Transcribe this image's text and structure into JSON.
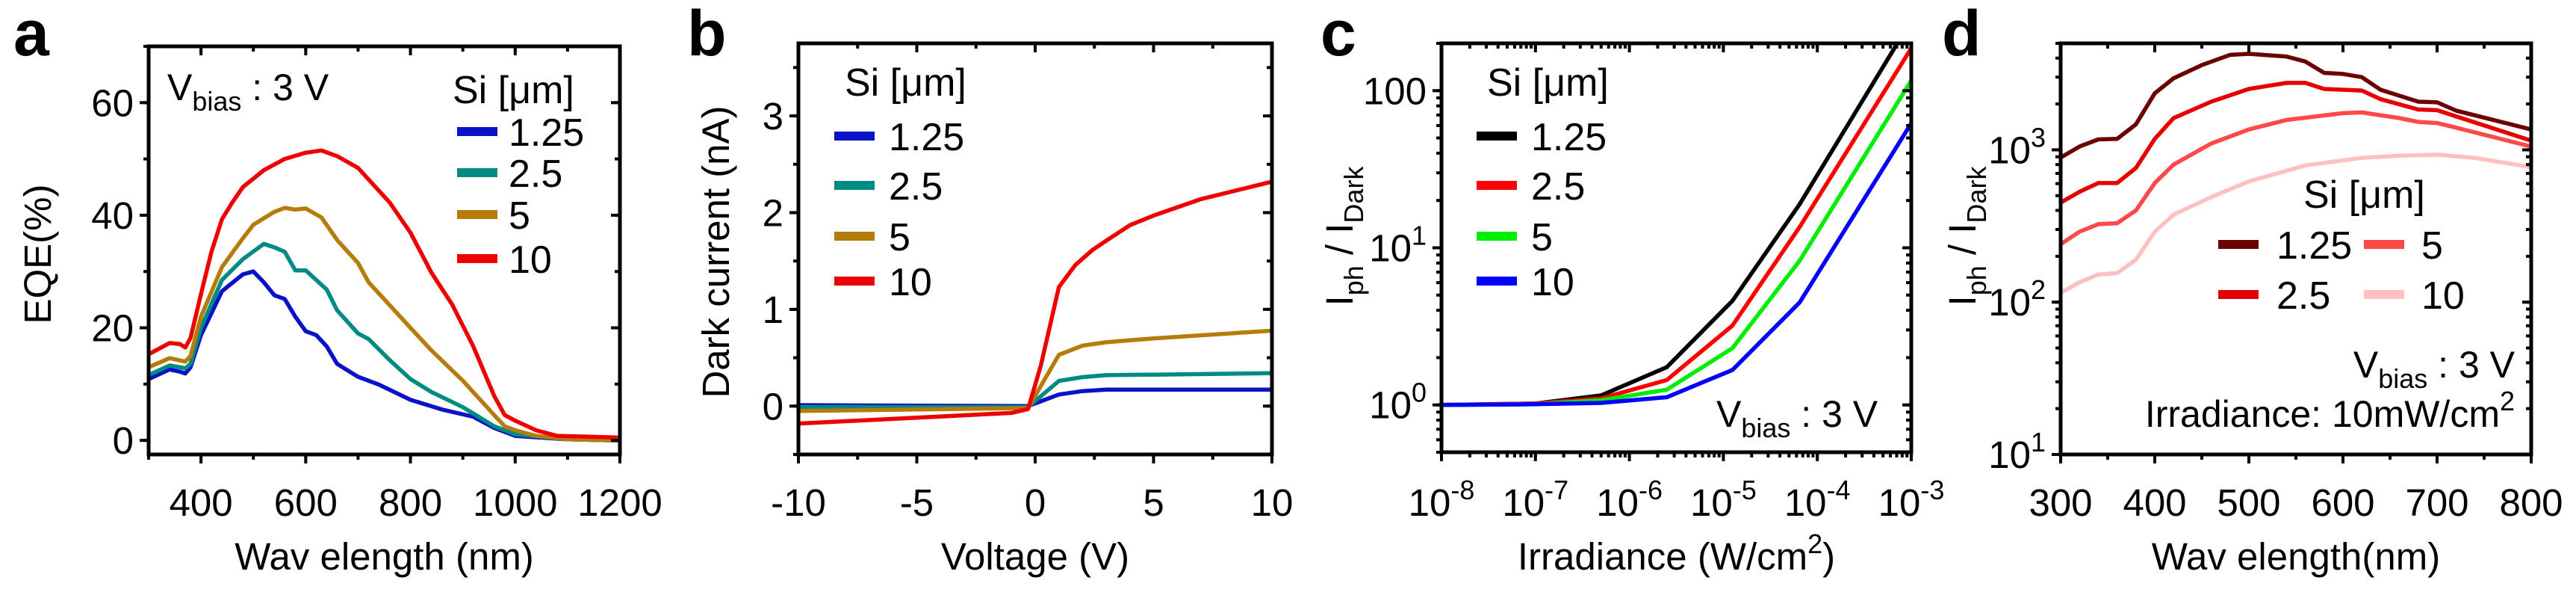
{
  "chart_data": [
    {
      "panel": "a",
      "type": "line",
      "xlabel": [
        {
          "text": "Wav elength (nm)"
        }
      ],
      "ylabel": [
        {
          "text": "EQE(%)"
        }
      ],
      "xscale": "linear",
      "yscale": "linear",
      "xlim": [
        300,
        1200
      ],
      "ylim": [
        -2.5,
        70
      ],
      "x_ticks": [
        {
          "value": 400,
          "label": "400"
        },
        {
          "value": 600,
          "label": "600"
        },
        {
          "value": 800,
          "label": "800"
        },
        {
          "value": 1000,
          "label": "1000"
        },
        {
          "value": 1200,
          "label": "1200"
        }
      ],
      "x_minor_step": 100,
      "y_ticks": [
        {
          "value": 0,
          "label": "0"
        },
        {
          "value": 20,
          "label": "20"
        },
        {
          "value": 40,
          "label": "40"
        },
        {
          "value": 60,
          "label": "60"
        }
      ],
      "y_minor_step": 10,
      "grid": false,
      "legend": {
        "title": "Si [μm]",
        "position": "top-right"
      },
      "annotations": [
        [
          {
            "text": "V"
          },
          {
            "text": "bias",
            "pos": "sub"
          },
          {
            "text": "  :  3 V"
          }
        ]
      ],
      "series": [
        {
          "name": "1.25",
          "color": "#0a12c8",
          "x": [
            300,
            340,
            360,
            370,
            380,
            400,
            440,
            480,
            500,
            520,
            540,
            560,
            580,
            600,
            620,
            640,
            660,
            700,
            740,
            800,
            860,
            920,
            960,
            1000,
            1100,
            1200
          ],
          "y": [
            10.9,
            12.6,
            12.2,
            11.9,
            13,
            18.7,
            26.5,
            29.5,
            30,
            28.1,
            25.8,
            25.1,
            22,
            19.4,
            18.7,
            16.7,
            13.6,
            11.3,
            9.9,
            7.2,
            5.5,
            4.2,
            2.2,
            0.8,
            0.2,
            0
          ]
        },
        {
          "name": "2.5",
          "color": "#008a84",
          "x": [
            300,
            340,
            360,
            370,
            380,
            400,
            440,
            480,
            520,
            540,
            560,
            580,
            600,
            640,
            660,
            700,
            720,
            760,
            800,
            840,
            900,
            960,
            1000,
            1100,
            1200
          ],
          "y": [
            11.6,
            13.3,
            13,
            12.8,
            13.6,
            20,
            28.5,
            32.2,
            34.9,
            34.3,
            33.5,
            30.2,
            30.2,
            26.8,
            23.1,
            19,
            18,
            14.3,
            10.9,
            8.6,
            5.9,
            2.5,
            1.1,
            0.2,
            0
          ]
        },
        {
          "name": "5",
          "color": "#b57c0a",
          "x": [
            300,
            340,
            360,
            370,
            380,
            400,
            440,
            480,
            500,
            540,
            560,
            580,
            600,
            630,
            660,
            700,
            720,
            800,
            840,
            900,
            960,
            980,
            1000,
            1040,
            1100,
            1200
          ],
          "y": [
            13,
            14.6,
            14.2,
            14,
            15,
            22,
            30.8,
            35.9,
            38.3,
            40.6,
            41.3,
            41,
            41.2,
            39.6,
            35.6,
            31.5,
            28.1,
            20,
            16,
            10.6,
            4.5,
            2.5,
            1.8,
            0.8,
            0.2,
            0
          ]
        },
        {
          "name": "10",
          "color": "#ee0000",
          "x": [
            300,
            340,
            360,
            370,
            380,
            400,
            420,
            440,
            460,
            480,
            520,
            560,
            600,
            630,
            660,
            700,
            760,
            800,
            840,
            880,
            920,
            960,
            980,
            1000,
            1040,
            1080,
            1200
          ],
          "y": [
            15.3,
            17.3,
            17.1,
            16.5,
            18.2,
            26,
            33.5,
            39.3,
            42.3,
            45,
            48,
            50,
            51.1,
            51.5,
            50.5,
            48.4,
            42.3,
            36.9,
            29.8,
            24.1,
            16.7,
            7.9,
            4.5,
            3.5,
            1.8,
            0.8,
            0.5
          ]
        }
      ]
    },
    {
      "panel": "b",
      "type": "line",
      "xlabel": [
        {
          "text": "Voltage (V)"
        }
      ],
      "ylabel": [
        {
          "text": "Dark current (nA)"
        }
      ],
      "xscale": "linear",
      "yscale": "linear",
      "xlim": [
        -10,
        10
      ],
      "ylim": [
        -0.5,
        3.75
      ],
      "x_ticks": [
        {
          "value": -10,
          "label": "-10"
        },
        {
          "value": -5,
          "label": "-5"
        },
        {
          "value": 0,
          "label": "0"
        },
        {
          "value": 5,
          "label": "5"
        },
        {
          "value": 10,
          "label": "10"
        }
      ],
      "x_minor_step": 2.5,
      "y_ticks": [
        {
          "value": 0,
          "label": "0"
        },
        {
          "value": 1,
          "label": "1"
        },
        {
          "value": 2,
          "label": "2"
        },
        {
          "value": 3,
          "label": "3"
        }
      ],
      "y_minor_step": 0.5,
      "grid": false,
      "legend": {
        "title": "Si [μm]",
        "position": "top-left"
      },
      "annotations": [],
      "series": [
        {
          "name": "1.25",
          "color": "#0a12c8",
          "x": [
            -10,
            -0.3,
            1,
            2,
            3,
            10
          ],
          "y": [
            0.01,
            0,
            0.12,
            0.155,
            0.17,
            0.17
          ]
        },
        {
          "name": "2.5",
          "color": "#008a84",
          "x": [
            -10,
            -0.3,
            1,
            2,
            3,
            5,
            10
          ],
          "y": [
            -0.01,
            -0.01,
            0.26,
            0.3,
            0.32,
            0.325,
            0.34
          ]
        },
        {
          "name": "5",
          "color": "#b57c0a",
          "x": [
            -10,
            -0.3,
            1,
            2,
            3,
            5,
            10
          ],
          "y": [
            -0.05,
            -0.02,
            0.53,
            0.625,
            0.66,
            0.7,
            0.78
          ]
        },
        {
          "name": "10",
          "color": "#ee0000",
          "x": [
            -10,
            -5,
            -1,
            -0.3,
            0.24,
            1,
            1.7,
            2.4,
            3,
            4,
            5,
            7,
            10
          ],
          "y": [
            -0.18,
            -0.12,
            -0.07,
            -0.03,
            0.42,
            1.23,
            1.46,
            1.61,
            1.71,
            1.87,
            1.97,
            2.14,
            2.32
          ]
        }
      ]
    },
    {
      "panel": "c",
      "type": "line",
      "xlabel": [
        {
          "text": "Irradiance (W/cm"
        },
        {
          "text": "2",
          "pos": "sup"
        },
        {
          "text": ")"
        }
      ],
      "ylabel": [
        {
          "text": "I"
        },
        {
          "text": "ph",
          "pos": "sub"
        },
        {
          "text": "  /  I"
        },
        {
          "text": "Dark",
          "pos": "sub"
        }
      ],
      "xscale": "log",
      "yscale": "log",
      "xlim": [
        1e-08,
        0.001
      ],
      "ylim": [
        0.5,
        200
      ],
      "x_ticks": [
        {
          "value": 1e-08,
          "label": {
            "base": "10",
            "exp": "-8"
          }
        },
        {
          "value": 1e-07,
          "label": {
            "base": "10",
            "exp": "-7"
          }
        },
        {
          "value": 1e-06,
          "label": {
            "base": "10",
            "exp": "-6"
          }
        },
        {
          "value": 1e-05,
          "label": {
            "base": "10",
            "exp": "-5"
          }
        },
        {
          "value": 0.0001,
          "label": {
            "base": "10",
            "exp": "-4"
          }
        },
        {
          "value": 0.001,
          "label": {
            "base": "10",
            "exp": "-3"
          }
        }
      ],
      "y_ticks": [
        {
          "value": 1,
          "label": {
            "base": "10",
            "exp": "0"
          }
        },
        {
          "value": 10,
          "label": {
            "base": "10",
            "exp": "1"
          }
        },
        {
          "value": 100,
          "label": "100"
        }
      ],
      "grid": false,
      "legend": {
        "title": "Si [μm]",
        "position": "top-left"
      },
      "annotations": [
        [
          {
            "text": "V"
          },
          {
            "text": "bias",
            "pos": "sub"
          },
          {
            "text": "  :  3 V"
          }
        ]
      ],
      "series": [
        {
          "name": "1.25",
          "color": "#000000",
          "x": [
            1e-08,
            1e-07,
            5e-07,
            2.5e-06,
            1.25e-05,
            6.5e-05,
            0.001
          ],
          "y": [
            1,
            1.02,
            1.15,
            1.74,
            4.6,
            19,
            280
          ]
        },
        {
          "name": "2.5",
          "color": "#ff0000",
          "x": [
            1e-08,
            1e-07,
            5e-07,
            2.5e-06,
            1.25e-05,
            6.5e-05,
            0.001
          ],
          "y": [
            1,
            1.02,
            1.1,
            1.44,
            3.2,
            13.6,
            186
          ]
        },
        {
          "name": "5",
          "color": "#00ee00",
          "x": [
            1e-08,
            1e-07,
            5e-07,
            2.5e-06,
            1.25e-05,
            6.5e-05,
            0.001
          ],
          "y": [
            1,
            1.01,
            1.07,
            1.25,
            2.3,
            8.3,
            116
          ]
        },
        {
          "name": "10",
          "color": "#0000ff",
          "x": [
            1e-08,
            1e-07,
            5e-07,
            2.5e-06,
            1.25e-05,
            6.5e-05,
            0.001
          ],
          "y": [
            1,
            1.01,
            1.03,
            1.12,
            1.67,
            4.5,
            62
          ]
        }
      ]
    },
    {
      "panel": "d",
      "type": "line",
      "xlabel": [
        {
          "text": "Wav elength(nm)"
        }
      ],
      "ylabel": [
        {
          "text": "I"
        },
        {
          "text": "ph",
          "pos": "sub"
        },
        {
          "text": "  /  I"
        },
        {
          "text": "Dark",
          "pos": "sub"
        }
      ],
      "xscale": "linear",
      "yscale": "log",
      "xlim": [
        300,
        800
      ],
      "ylim": [
        10,
        5000
      ],
      "x_ticks": [
        {
          "value": 300,
          "label": "300"
        },
        {
          "value": 400,
          "label": "400"
        },
        {
          "value": 500,
          "label": "500"
        },
        {
          "value": 600,
          "label": "600"
        },
        {
          "value": 700,
          "label": "700"
        },
        {
          "value": 800,
          "label": "800"
        }
      ],
      "x_minor_step": 50,
      "y_ticks": [
        {
          "value": 10,
          "label": {
            "base": "10",
            "exp": "1"
          }
        },
        {
          "value": 100,
          "label": {
            "base": "10",
            "exp": "2"
          }
        },
        {
          "value": 1000,
          "label": {
            "base": "10",
            "exp": "3"
          }
        }
      ],
      "grid": false,
      "legend": {
        "title": "Si [μm]",
        "position": "center-right"
      },
      "annotations": [
        [
          {
            "text": "V"
          },
          {
            "text": "bias",
            "pos": "sub"
          },
          {
            "text": "  :  3 V"
          }
        ],
        [
          {
            "text": "Irradiance:  10mW/cm"
          },
          {
            "text": "2",
            "pos": "sup"
          }
        ]
      ],
      "series": [
        {
          "name": "1.25",
          "color": "#6b0000",
          "x": [
            300,
            320,
            340,
            360,
            380,
            400,
            420,
            450,
            480,
            500,
            540,
            560,
            580,
            600,
            620,
            640,
            680,
            700,
            720,
            800
          ],
          "y": [
            890,
            1050,
            1170,
            1180,
            1470,
            2350,
            2950,
            3600,
            4200,
            4270,
            4100,
            3800,
            3200,
            3150,
            3000,
            2480,
            2070,
            2050,
            1810,
            1360
          ]
        },
        {
          "name": "2.5",
          "color": "#e60000",
          "x": [
            300,
            320,
            340,
            360,
            380,
            400,
            420,
            460,
            500,
            540,
            560,
            580,
            620,
            640,
            680,
            700,
            720,
            800
          ],
          "y": [
            450,
            530,
            605,
            605,
            760,
            1180,
            1615,
            2070,
            2510,
            2750,
            2750,
            2510,
            2450,
            2150,
            1840,
            1820,
            1660,
            1150
          ]
        },
        {
          "name": "5",
          "color": "#ff4848",
          "x": [
            300,
            320,
            340,
            360,
            380,
            400,
            420,
            460,
            500,
            540,
            600,
            620,
            660,
            680,
            700,
            720,
            800
          ],
          "y": [
            240,
            290,
            325,
            330,
            400,
            605,
            800,
            1100,
            1360,
            1570,
            1740,
            1760,
            1615,
            1525,
            1500,
            1400,
            1050
          ]
        },
        {
          "name": "10",
          "color": "#ffc0c0",
          "x": [
            300,
            320,
            340,
            360,
            380,
            400,
            420,
            460,
            500,
            560,
            620,
            660,
            700,
            740,
            800
          ],
          "y": [
            115,
            135,
            152,
            155,
            190,
            290,
            375,
            490,
            620,
            790,
            885,
            915,
            930,
            885,
            770
          ]
        }
      ]
    }
  ]
}
